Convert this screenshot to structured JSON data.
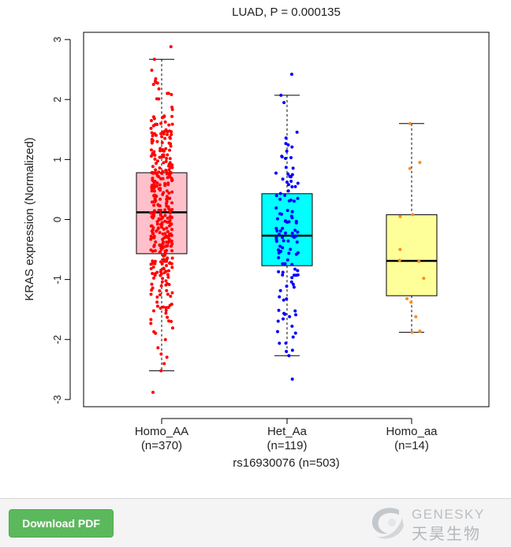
{
  "chart_data": {
    "type": "box",
    "title": "LUAD, P = 0.000135",
    "xlabel": "rs16930076 (n=503)",
    "ylabel": "KRAS expression (Normalized)",
    "ylim": [
      -3.12,
      3.12
    ],
    "yticks": [
      -3,
      -2,
      -1,
      0,
      1,
      2,
      3
    ],
    "ytick_labels": [
      "-3",
      "-2",
      "-1",
      "0",
      "1",
      "2",
      "3"
    ],
    "grid": false,
    "groups": [
      {
        "name": "Homo_AA",
        "n_label": "(n=370)",
        "n": 370,
        "fill": "#ffc0cb",
        "point_color": "#ff0000",
        "whisker_low": -2.52,
        "q1": -0.57,
        "median": 0.12,
        "q3": 0.78,
        "whisker_high": 2.67,
        "outliers": [
          2.88,
          -2.88
        ]
      },
      {
        "name": "Het_Aa",
        "n_label": "(n=119)",
        "n": 119,
        "fill": "#00ffff",
        "point_color": "#0000ff",
        "whisker_low": -2.27,
        "q1": -0.77,
        "median": -0.27,
        "q3": 0.43,
        "whisker_high": 2.07,
        "outliers": [
          2.42,
          -2.66
        ]
      },
      {
        "name": "Homo_aa",
        "n_label": "(n=14)",
        "n": 14,
        "fill": "#ffff99",
        "point_color": "#ff8c1a",
        "whisker_low": -1.88,
        "q1": -1.27,
        "median": -0.69,
        "q3": 0.08,
        "whisker_high": 1.6,
        "outliers": [],
        "points": [
          1.6,
          0.95,
          0.85,
          0.08,
          0.05,
          -0.5,
          -0.68,
          -0.7,
          -0.98,
          -1.32,
          -1.38,
          -1.62,
          -1.86,
          -1.88
        ]
      }
    ]
  },
  "footer": {
    "download_label": "Download PDF",
    "logo_en": "GENESKY",
    "logo_cn": "天昊生物"
  },
  "colors": {
    "button_green": "#5cb85c",
    "footer_bg": "#f4f4f4",
    "logo_gray": "#b9bec3"
  }
}
